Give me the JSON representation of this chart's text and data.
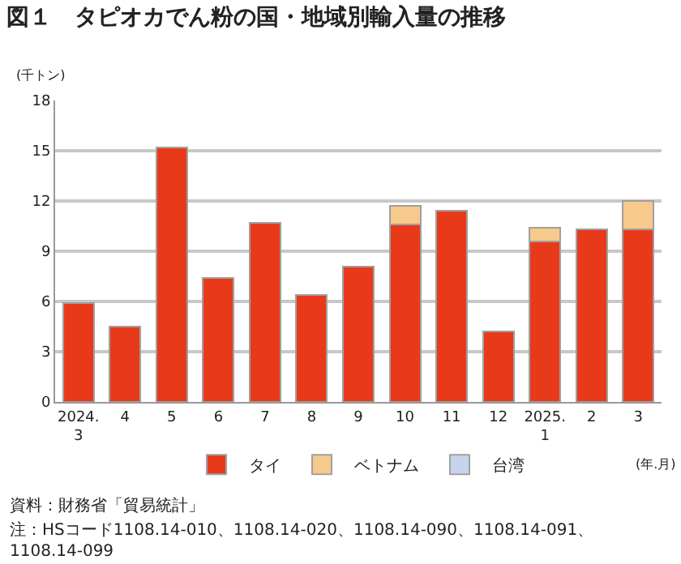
{
  "chart_data": {
    "type": "bar",
    "stacked": true,
    "title": "図１　タピオカでん粉の国・地域別輸入量の推移",
    "ylabel": "(千トン)",
    "xlabel": "(年.月)",
    "categories": [
      "2024.\n3",
      "4",
      "5",
      "6",
      "7",
      "8",
      "9",
      "10",
      "11",
      "12",
      "2025.\n1",
      "2",
      "3"
    ],
    "series": [
      {
        "name": "タイ",
        "color": "#e83a1a",
        "values": [
          5.9,
          4.5,
          15.2,
          7.4,
          10.7,
          6.4,
          8.1,
          10.6,
          11.4,
          4.2,
          9.6,
          10.3,
          10.3
        ]
      },
      {
        "name": "ベトナム",
        "color": "#f7c98a",
        "values": [
          null,
          null,
          null,
          null,
          null,
          null,
          null,
          1.1,
          null,
          null,
          0.8,
          null,
          1.7
        ]
      },
      {
        "name": "台湾",
        "color": "#c8d4ec",
        "values": [
          null,
          null,
          null,
          null,
          null,
          null,
          null,
          null,
          null,
          null,
          null,
          null,
          null
        ]
      }
    ],
    "ylim": [
      0,
      18
    ],
    "yticks": [
      0,
      3,
      6,
      9,
      12,
      15,
      18
    ],
    "grid": "y",
    "legend": "bottom",
    "annotations": [
      "資料：財務省「貿易統計」",
      "注：HSコード1108.14-010、1108.14-020、1108.14-090、1108.14-091、\n1108.14-099"
    ]
  }
}
